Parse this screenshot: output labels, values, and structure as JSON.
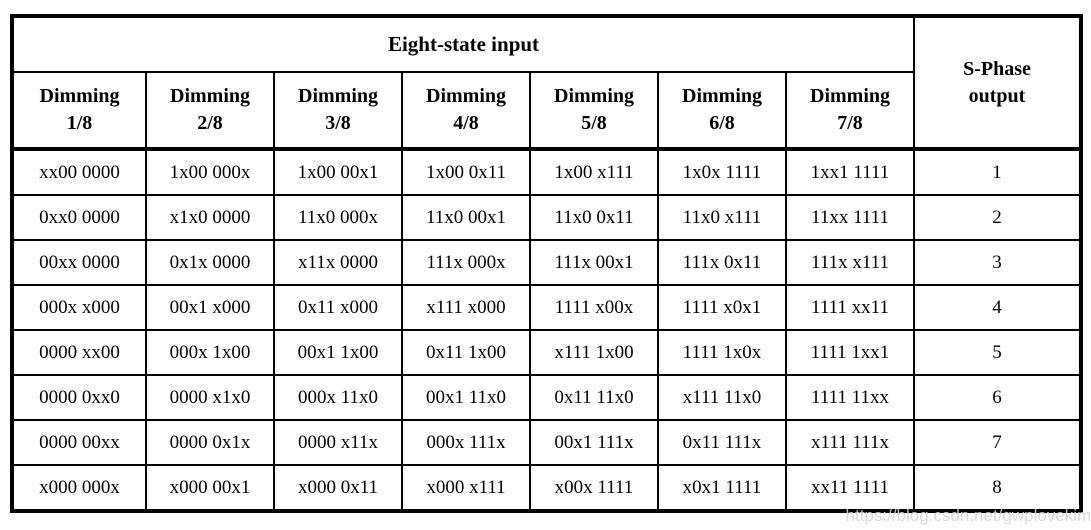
{
  "table": {
    "title": "Eight-state input",
    "output_header": "S-Phase\noutput",
    "column_headers": [
      "Dimming\n1/8",
      "Dimming\n2/8",
      "Dimming\n3/8",
      "Dimming\n4/8",
      "Dimming\n5/8",
      "Dimming\n6/8",
      "Dimming\n7/8"
    ],
    "rows": [
      {
        "inputs": [
          "xx00 0000",
          "1x00 000x",
          "1x00 00x1",
          "1x00 0x11",
          "1x00 x111",
          "1x0x 1111",
          "1xx1 1111"
        ],
        "output": "1"
      },
      {
        "inputs": [
          "0xx0 0000",
          "x1x0 0000",
          "11x0 000x",
          "11x0 00x1",
          "11x0 0x11",
          "11x0 x111",
          "11xx 1111"
        ],
        "output": "2"
      },
      {
        "inputs": [
          "00xx 0000",
          "0x1x 0000",
          "x11x 0000",
          "111x 000x",
          "111x 00x1",
          "111x 0x11",
          "111x x111"
        ],
        "output": "3"
      },
      {
        "inputs": [
          "000x x000",
          "00x1 x000",
          "0x11 x000",
          "x111 x000",
          "1111 x00x",
          "1111 x0x1",
          "1111 xx11"
        ],
        "output": "4"
      },
      {
        "inputs": [
          "0000 xx00",
          "000x 1x00",
          "00x1 1x00",
          "0x11 1x00",
          "x111 1x00",
          "1111 1x0x",
          "1111 1xx1"
        ],
        "output": "5"
      },
      {
        "inputs": [
          "0000 0xx0",
          "0000 x1x0",
          "000x 11x0",
          "00x1 11x0",
          "0x11 11x0",
          "x111 11x0",
          "1111 11xx"
        ],
        "output": "6"
      },
      {
        "inputs": [
          "0000 00xx",
          "0000 0x1x",
          "0000 x11x",
          "000x 111x",
          "00x1 111x",
          "0x11 111x",
          "x111 111x"
        ],
        "output": "7"
      },
      {
        "inputs": [
          "x000 000x",
          "x000 00x1",
          "x000 0x11",
          "x000 x111",
          "x00x 1111",
          "x0x1 1111",
          "xx11 1111"
        ],
        "output": "8"
      }
    ]
  },
  "watermark": "https://blog.csdn.net/gwplovekimi",
  "colors": {
    "background": "#ffffff",
    "border": "#000000",
    "text": "#000000",
    "watermark": "#d5d5d5"
  }
}
